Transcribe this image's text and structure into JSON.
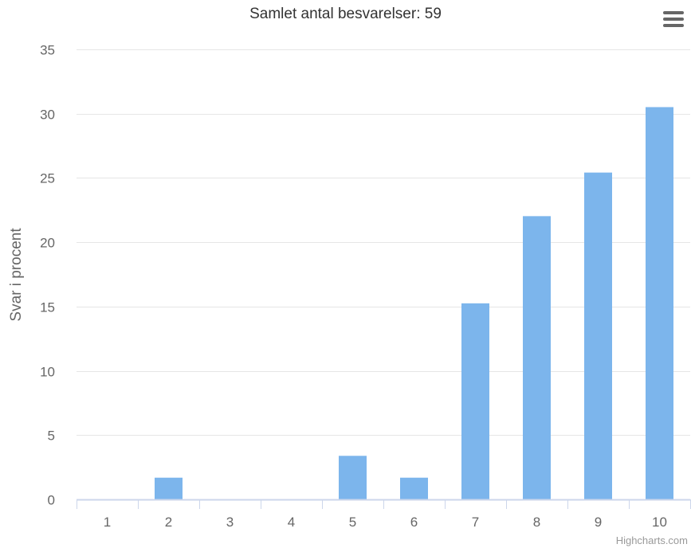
{
  "chart_menu": {
    "icon": "hamburger-menu-icon"
  },
  "credit": "Highcharts.com",
  "chart_data": {
    "type": "bar",
    "title": "Samlet antal besvarelser: 59",
    "xlabel": "",
    "ylabel": "Svar i procent",
    "categories": [
      "1",
      "2",
      "3",
      "4",
      "5",
      "6",
      "7",
      "8",
      "9",
      "10"
    ],
    "values": [
      0,
      1.69,
      0,
      0,
      3.39,
      1.69,
      15.25,
      22.03,
      25.42,
      30.51
    ],
    "ylim": [
      0,
      35
    ],
    "yticks": [
      0,
      5,
      10,
      15,
      20,
      25,
      30,
      35
    ],
    "grid": true,
    "legend": "none",
    "bar_color": "#7cb5ec",
    "grid_color": "#e6e6e6",
    "axis_color": "#ccd6eb",
    "text_color": "#666666"
  }
}
